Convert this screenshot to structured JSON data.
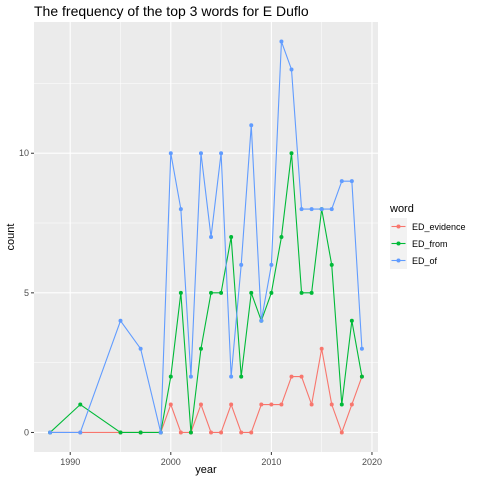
{
  "chart_data": {
    "type": "line",
    "title": "The frequency of the top 3 words for E Duflo",
    "xlabel": "year",
    "ylabel": "count",
    "xlim": [
      1986.4,
      2020.6
    ],
    "ylim": [
      -0.7,
      14.7
    ],
    "x_ticks": [
      1990,
      2000,
      2010,
      2020
    ],
    "y_ticks": [
      0,
      5,
      10
    ],
    "grid": true,
    "legend": {
      "title": "word",
      "position": "right"
    },
    "series": [
      {
        "name": "ED_evidence",
        "color": "#F8766D",
        "x": [
          1988,
          1991,
          1995,
          1997,
          1999,
          2000,
          2001,
          2002,
          2003,
          2004,
          2005,
          2006,
          2007,
          2008,
          2009,
          2010,
          2011,
          2012,
          2013,
          2014,
          2015,
          2016,
          2017,
          2018,
          2019
        ],
        "values": [
          0,
          0,
          0,
          0,
          0,
          1,
          0,
          0,
          1,
          0,
          0,
          1,
          0,
          0,
          1,
          1,
          1,
          2,
          2,
          1,
          3,
          1,
          0,
          1,
          2
        ]
      },
      {
        "name": "ED_from",
        "color": "#00BA38",
        "x": [
          1988,
          1991,
          1995,
          1997,
          1999,
          2000,
          2001,
          2002,
          2003,
          2004,
          2005,
          2006,
          2007,
          2008,
          2009,
          2010,
          2011,
          2012,
          2013,
          2014,
          2015,
          2016,
          2017,
          2018,
          2019
        ],
        "values": [
          0,
          1,
          0,
          0,
          0,
          2,
          5,
          0,
          3,
          5,
          5,
          7,
          2,
          5,
          4,
          5,
          7,
          10,
          5,
          5,
          8,
          6,
          1,
          4,
          2
        ]
      },
      {
        "name": "ED_of",
        "color": "#619CFF",
        "x": [
          1988,
          1991,
          1995,
          1997,
          1999,
          2000,
          2001,
          2002,
          2003,
          2004,
          2005,
          2006,
          2007,
          2008,
          2009,
          2010,
          2011,
          2012,
          2013,
          2014,
          2015,
          2016,
          2017,
          2018,
          2019
        ],
        "values": [
          0,
          0,
          4,
          3,
          0,
          10,
          8,
          2,
          10,
          7,
          10,
          2,
          6,
          11,
          4,
          6,
          14,
          13,
          8,
          8,
          8,
          8,
          9,
          9,
          3
        ]
      }
    ]
  }
}
